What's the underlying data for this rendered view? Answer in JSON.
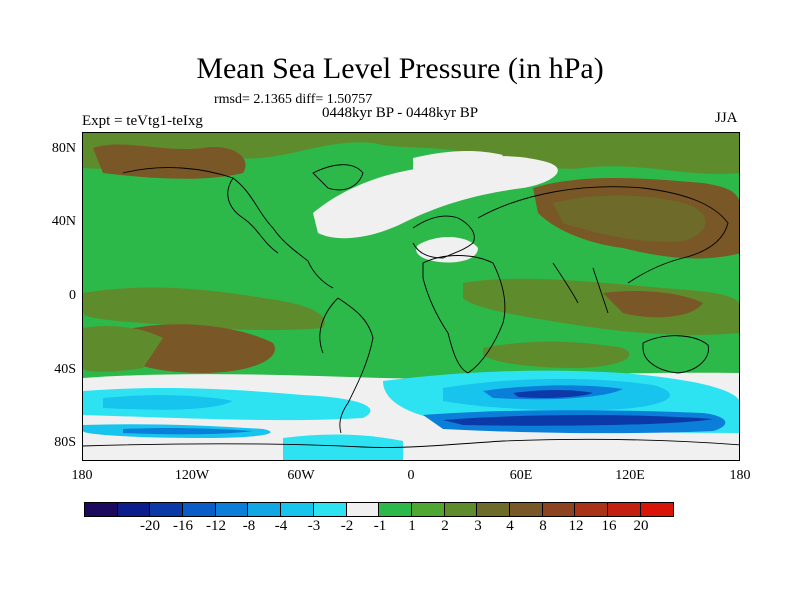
{
  "title": "Mean Sea Level Pressure (in hPa)",
  "stats": "rmsd= 2.1365 diff= 1.50757",
  "period": "0448kyr BP - 0448kyr BP",
  "expt": "Expt = teVtg1-teIxg",
  "season": "JJA",
  "lat_labels": [
    "80N",
    "40N",
    "0",
    "40S",
    "80S"
  ],
  "lon_labels": [
    "180",
    "120W",
    "60W",
    "0",
    "60E",
    "120E",
    "180"
  ],
  "colorbar": {
    "colors": [
      "#1b0a5e",
      "#0c1e8c",
      "#0b3aa8",
      "#0a5cc6",
      "#0b7ed9",
      "#11a6e4",
      "#17c4ee",
      "#2de3f2",
      "#f0f0f0",
      "#2db84a",
      "#4fa631",
      "#5e8c2d",
      "#6e6b2a",
      "#7a5726",
      "#8c4420",
      "#a93219",
      "#c42011",
      "#d9150a"
    ],
    "labels": [
      "-20",
      "-16",
      "-12",
      "-8",
      "-4",
      "-3",
      "-2",
      "-1",
      "1",
      "2",
      "3",
      "4",
      "8",
      "12",
      "16",
      "20"
    ]
  },
  "colors": {
    "green": "#2db84a",
    "dark_olive": "#5e8c2d",
    "brown": "#7a5726",
    "white": "#f0f0f0",
    "light_cyan": "#2de3f2",
    "cyan": "#17c4ee",
    "blue": "#0b7ed9",
    "dark_blue": "#0b3aa8"
  }
}
